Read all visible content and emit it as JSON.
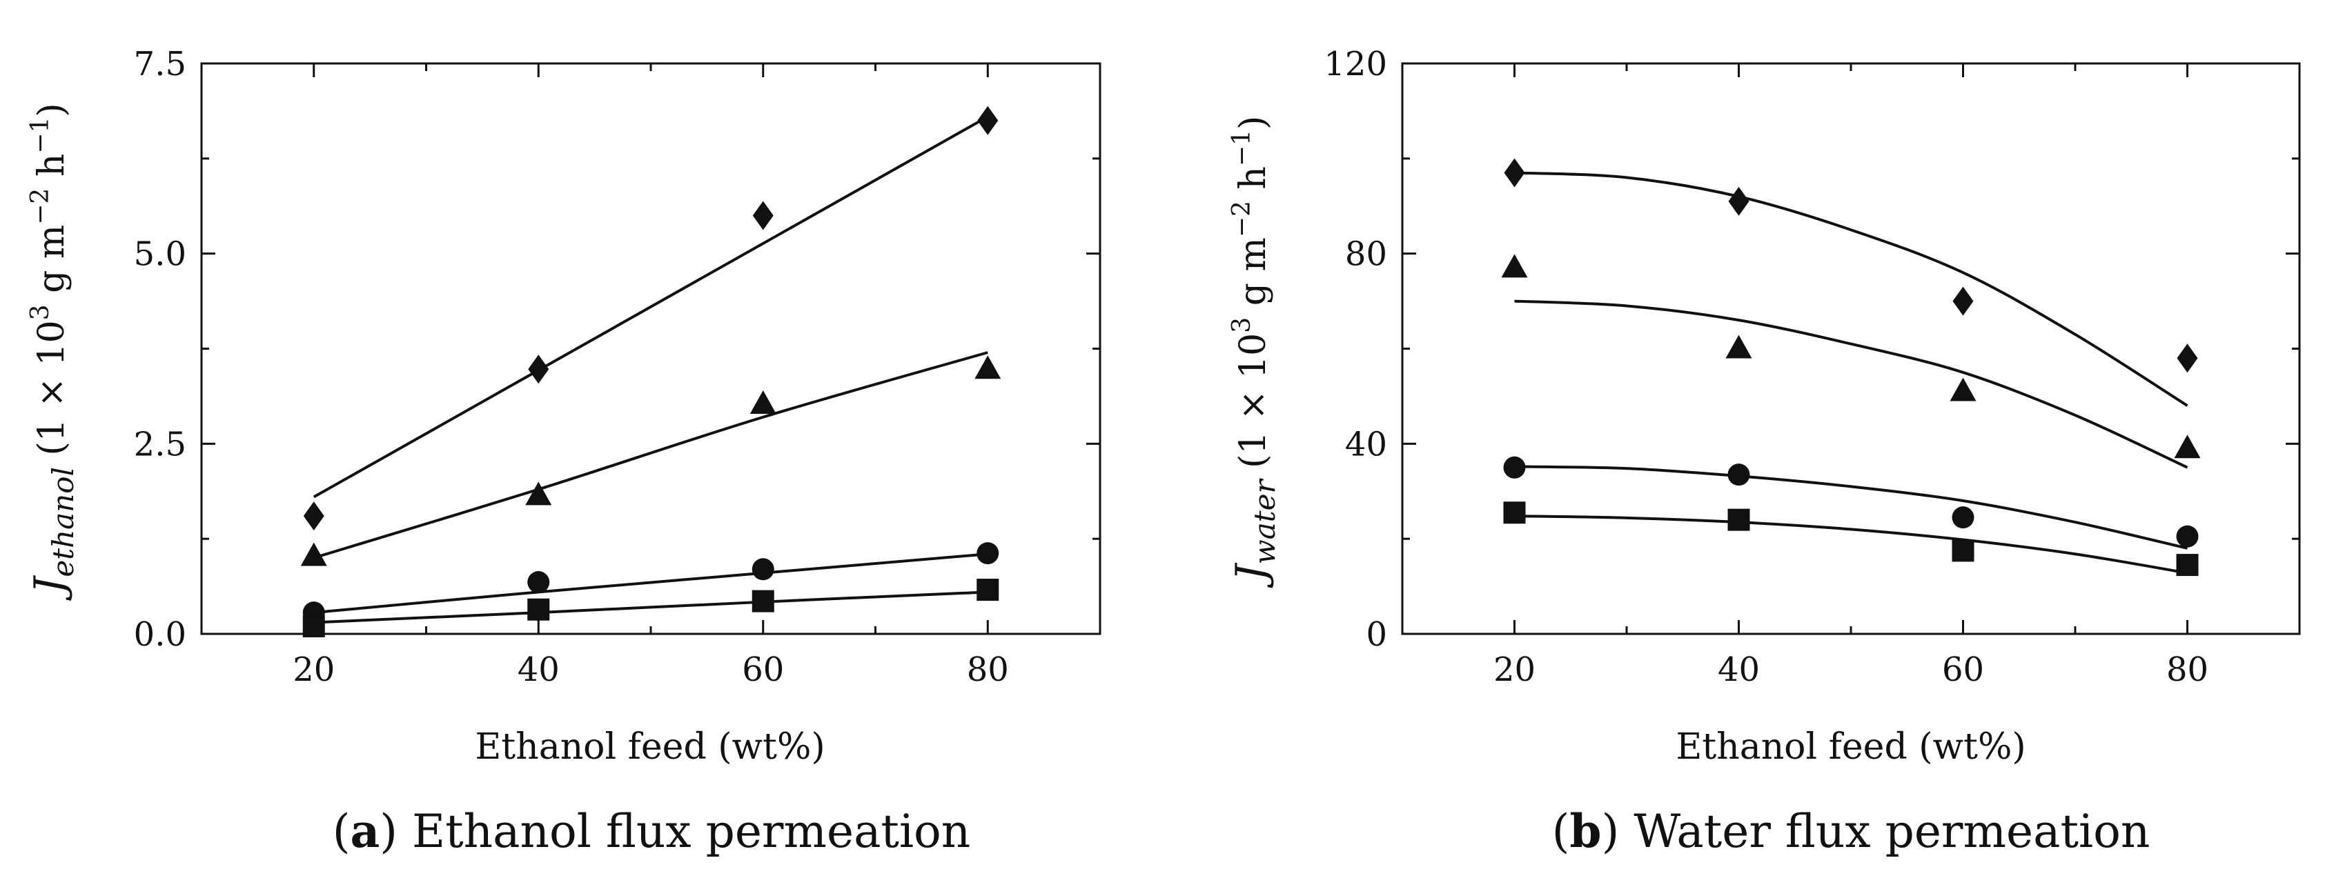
{
  "chart_data": [
    {
      "type": "scatter",
      "title": "",
      "caption_letter": "a",
      "caption_text": "Ethanol flux permeation",
      "xlabel": "Ethanol feed (wt%)",
      "ylabel": {
        "symbol": "J",
        "subscript": "ethanol",
        "open": "(1 × 10",
        "sup1": "3",
        "mid": " g m",
        "sup2": "−2",
        "mid2": " h",
        "sup3": "−1",
        "close": ")"
      },
      "xlim": [
        10,
        90
      ],
      "ylim": [
        0,
        7.5
      ],
      "xticks": [
        20,
        40,
        60,
        80
      ],
      "yticks": [
        0,
        2.5,
        5,
        7.5
      ],
      "xtick_labels": [
        "20",
        "40",
        "60",
        "80"
      ],
      "ytick_labels": [
        "0.0",
        "2.5",
        "5.0",
        "7.5"
      ],
      "grid": false,
      "series": [
        {
          "name": "diamond",
          "marker": "diamond",
          "x": [
            20,
            40,
            60,
            80
          ],
          "y": [
            1.55,
            3.48,
            5.5,
            6.75
          ],
          "fit": [
            [
              20,
              1.8
            ],
            [
              80,
              6.8
            ]
          ],
          "fit_type": "linear"
        },
        {
          "name": "triangle",
          "marker": "triangle",
          "x": [
            20,
            40,
            60,
            80
          ],
          "y": [
            1.02,
            1.82,
            3.02,
            3.48
          ],
          "fit": [
            [
              20,
              1.0
            ],
            [
              40,
              1.9
            ],
            [
              60,
              2.85
            ],
            [
              80,
              3.7
            ]
          ],
          "fit_type": "curve"
        },
        {
          "name": "circle",
          "marker": "circle",
          "x": [
            20,
            40,
            60,
            80
          ],
          "y": [
            0.28,
            0.68,
            0.85,
            1.06
          ],
          "fit": [
            [
              20,
              0.28
            ],
            [
              40,
              0.55
            ],
            [
              60,
              0.8
            ],
            [
              80,
              1.05
            ]
          ],
          "fit_type": "curve"
        },
        {
          "name": "square",
          "marker": "square",
          "x": [
            20,
            40,
            60,
            80
          ],
          "y": [
            0.1,
            0.32,
            0.43,
            0.58
          ],
          "fit": [
            [
              20,
              0.15
            ],
            [
              40,
              0.28
            ],
            [
              60,
              0.42
            ],
            [
              80,
              0.55
            ]
          ],
          "fit_type": "curve"
        }
      ]
    },
    {
      "type": "scatter",
      "title": "",
      "caption_letter": "b",
      "caption_text": "Water flux permeation",
      "xlabel": "Ethanol feed (wt%)",
      "ylabel": {
        "symbol": "J",
        "subscript": "water",
        "open": "(1 × 10",
        "sup1": "3",
        "mid": " g m",
        "sup2": "−2",
        "mid2": " h",
        "sup3": "−1",
        "close": ")"
      },
      "xlim": [
        10,
        90
      ],
      "ylim": [
        0,
        120
      ],
      "xticks": [
        20,
        40,
        60,
        80
      ],
      "yticks": [
        0,
        40,
        80,
        120
      ],
      "xtick_labels": [
        "20",
        "40",
        "60",
        "80"
      ],
      "ytick_labels": [
        "0",
        "40",
        "80",
        "120"
      ],
      "grid": false,
      "series": [
        {
          "name": "diamond",
          "marker": "diamond",
          "x": [
            20,
            40,
            60,
            80
          ],
          "y": [
            97,
            91,
            70,
            58
          ],
          "fit": [
            [
              20,
              97
            ],
            [
              30,
              96
            ],
            [
              40,
              92
            ],
            [
              50,
              85
            ],
            [
              60,
              76
            ],
            [
              70,
              63
            ],
            [
              80,
              48
            ]
          ],
          "fit_type": "curve"
        },
        {
          "name": "triangle",
          "marker": "triangle",
          "x": [
            20,
            40,
            60,
            80
          ],
          "y": [
            77,
            60,
            51,
            39
          ],
          "fit": [
            [
              20,
              70
            ],
            [
              30,
              69
            ],
            [
              40,
              66
            ],
            [
              50,
              61
            ],
            [
              60,
              55
            ],
            [
              70,
              46
            ],
            [
              80,
              35
            ]
          ],
          "fit_type": "curve"
        },
        {
          "name": "circle",
          "marker": "circle",
          "x": [
            20,
            40,
            60,
            80
          ],
          "y": [
            35,
            33.5,
            24.5,
            20.5
          ],
          "fit": [
            [
              20,
              35.2
            ],
            [
              30,
              34.8
            ],
            [
              40,
              33.2
            ],
            [
              50,
              31
            ],
            [
              60,
              28
            ],
            [
              70,
              23.5
            ],
            [
              80,
              18
            ]
          ],
          "fit_type": "curve"
        },
        {
          "name": "square",
          "marker": "square",
          "x": [
            20,
            40,
            60,
            80
          ],
          "y": [
            25.5,
            24,
            17.5,
            14.5
          ],
          "fit": [
            [
              20,
              24.8
            ],
            [
              30,
              24.4
            ],
            [
              40,
              23.5
            ],
            [
              50,
              22
            ],
            [
              60,
              19.8
            ],
            [
              70,
              16.8
            ],
            [
              80,
              12.8
            ]
          ],
          "fit_type": "curve"
        }
      ]
    }
  ]
}
